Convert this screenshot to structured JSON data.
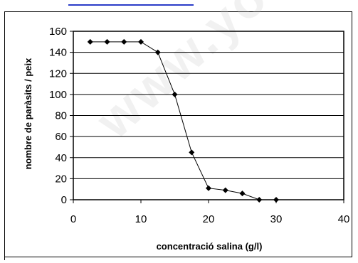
{
  "chart_data": {
    "type": "line",
    "title": "",
    "xlabel": "concentració salina (g/l)",
    "ylabel": "nombre de paràsits / peix",
    "xlim": [
      0,
      40
    ],
    "ylim": [
      0,
      160
    ],
    "xticks": [
      0,
      10,
      20,
      30,
      40
    ],
    "yticks": [
      0,
      20,
      40,
      60,
      80,
      100,
      120,
      140,
      160
    ],
    "grid": "horizontal",
    "legend": "none",
    "series": [
      {
        "x": [
          2.5,
          5,
          7.5,
          10,
          12.5,
          15,
          17.5,
          20,
          22.5,
          25,
          27.5,
          30
        ],
        "y": [
          150,
          150,
          150,
          150,
          140,
          100,
          45,
          11,
          9,
          6,
          0,
          0
        ]
      }
    ],
    "colors": {
      "line": "#000000",
      "marker": "#000000",
      "grid": "#000000"
    }
  }
}
